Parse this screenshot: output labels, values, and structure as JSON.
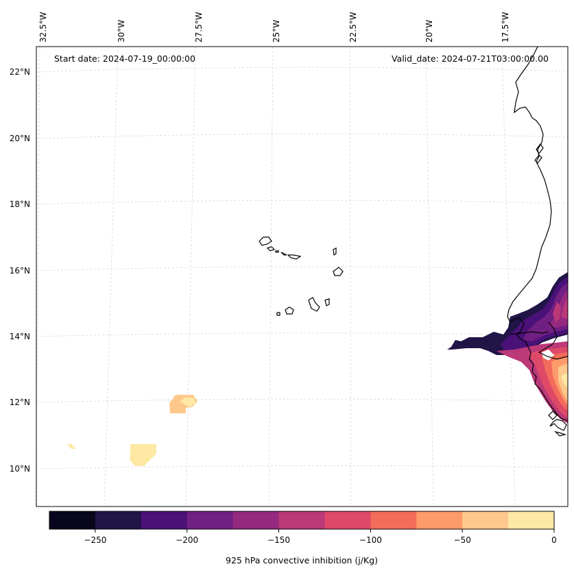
{
  "map": {
    "longitude_labels": [
      "32.5°W",
      "30°W",
      "27.5°W",
      "25°W",
      "22.5°W",
      "20°W",
      "17.5°W"
    ],
    "latitude_labels": [
      "22°N",
      "20°N",
      "18°N",
      "16°N",
      "14°N",
      "12°N",
      "10°N"
    ],
    "start_date_text": "Start date: 2024-07-19_00:00:00",
    "valid_date_text": "Valid_date: 2024-07-21T03:00:00.00"
  },
  "colorbar": {
    "label": "925 hPa convective inhibition (j/Kg)",
    "tick_labels": [
      "−250",
      "−200",
      "−150",
      "−100",
      "−50",
      "0"
    ],
    "levels": [
      -275,
      -250,
      -225,
      -200,
      -175,
      -150,
      -125,
      -100,
      -75,
      -50,
      -25,
      0
    ],
    "colors": [
      "#07061c",
      "#211447",
      "#4a1178",
      "#701f82",
      "#95297f",
      "#bb3879",
      "#de4968",
      "#f36b5b",
      "#fe9b6b",
      "#fec88c",
      "#fde8a4"
    ],
    "cmap": "magma"
  }
}
